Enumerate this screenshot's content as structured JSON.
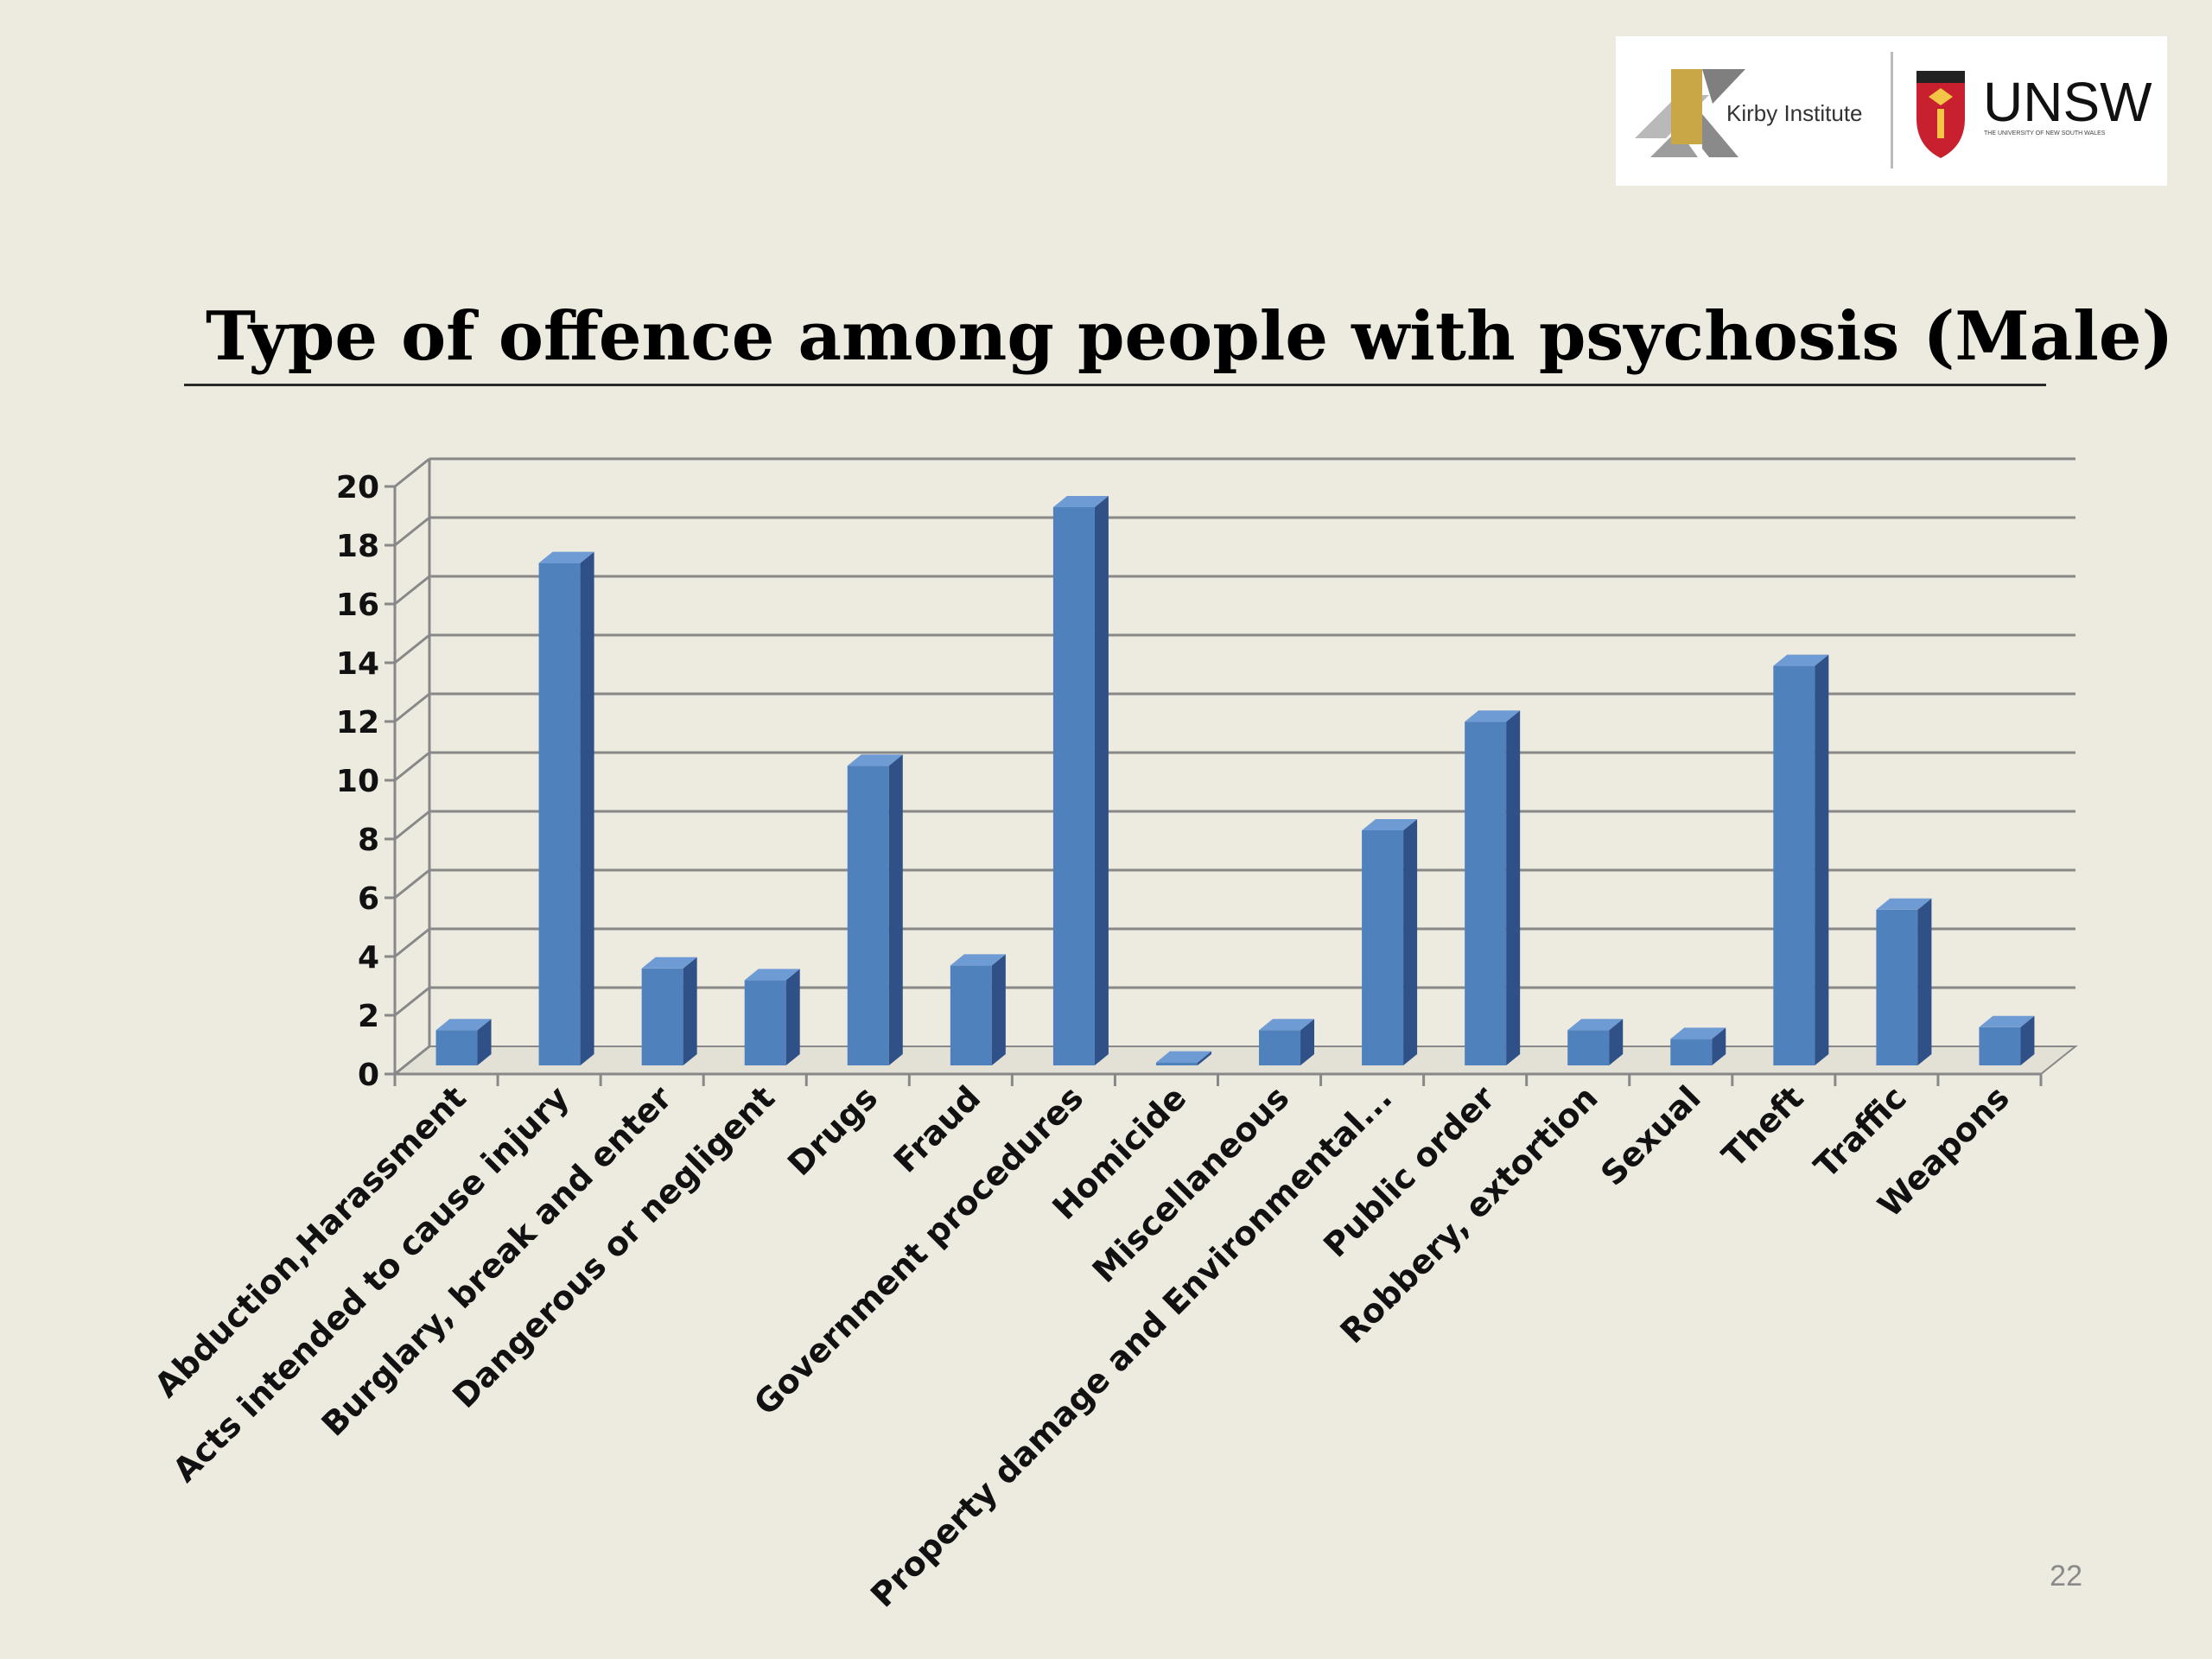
{
  "slide": {
    "title": "Type of offence among people with psychosis (Male)",
    "page_number": "22"
  },
  "logos": {
    "kirby": "Kirby Institute",
    "unsw": "UNSW",
    "unsw_subtitle": "THE UNIVERSITY OF NEW SOUTH WALES"
  },
  "colors": {
    "background": "#edeae0",
    "bar_front": "#4f81bd",
    "bar_side": "#2f5188",
    "bar_top": "#6e9bd4",
    "grid": "#888888"
  },
  "chart_data": {
    "type": "bar",
    "title": "",
    "xlabel": "",
    "ylabel": "",
    "ylim": [
      0,
      20
    ],
    "yticks": [
      0,
      2,
      4,
      6,
      8,
      10,
      12,
      14,
      16,
      18,
      20
    ],
    "grid": true,
    "legend": "none",
    "style": "3d-column",
    "categories": [
      "Abduction,Harassment",
      "Acts intended to cause injury",
      "Burglary, break and enter",
      "Dangerous or negligent",
      "Drugs",
      "Fraud",
      "Government procedures",
      "Homicide",
      "Miscellaneous",
      "Property damage and Environmental...",
      "Public order",
      "Robbery, extortion",
      "Sexual",
      "Theft",
      "Traffic",
      "Weapons"
    ],
    "values": [
      1.2,
      17.1,
      3.3,
      2.9,
      10.2,
      3.4,
      19.0,
      0.1,
      1.2,
      8.0,
      11.7,
      1.2,
      0.9,
      13.6,
      5.3,
      1.3
    ]
  }
}
